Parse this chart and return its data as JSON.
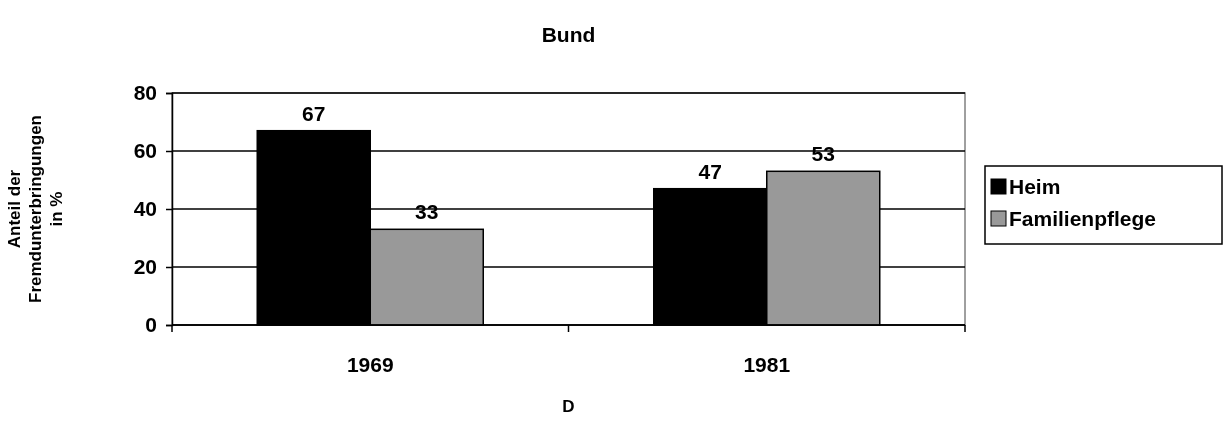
{
  "chart_data": {
    "type": "bar",
    "title": "Bund",
    "xlabel": "D",
    "ylabel": "Anteil der Fremdunterbringungen in %",
    "categories": [
      "1969",
      "1981"
    ],
    "series": [
      {
        "name": "Heim",
        "color": "#000000",
        "values": [
          67,
          47
        ]
      },
      {
        "name": "Familienpflege",
        "color": "#999999",
        "values": [
          33,
          53
        ]
      }
    ],
    "ylim": [
      0,
      80
    ],
    "yticks": [
      0,
      20,
      40,
      60,
      80
    ],
    "grid": "y",
    "legend": "right",
    "data_labels": true
  }
}
